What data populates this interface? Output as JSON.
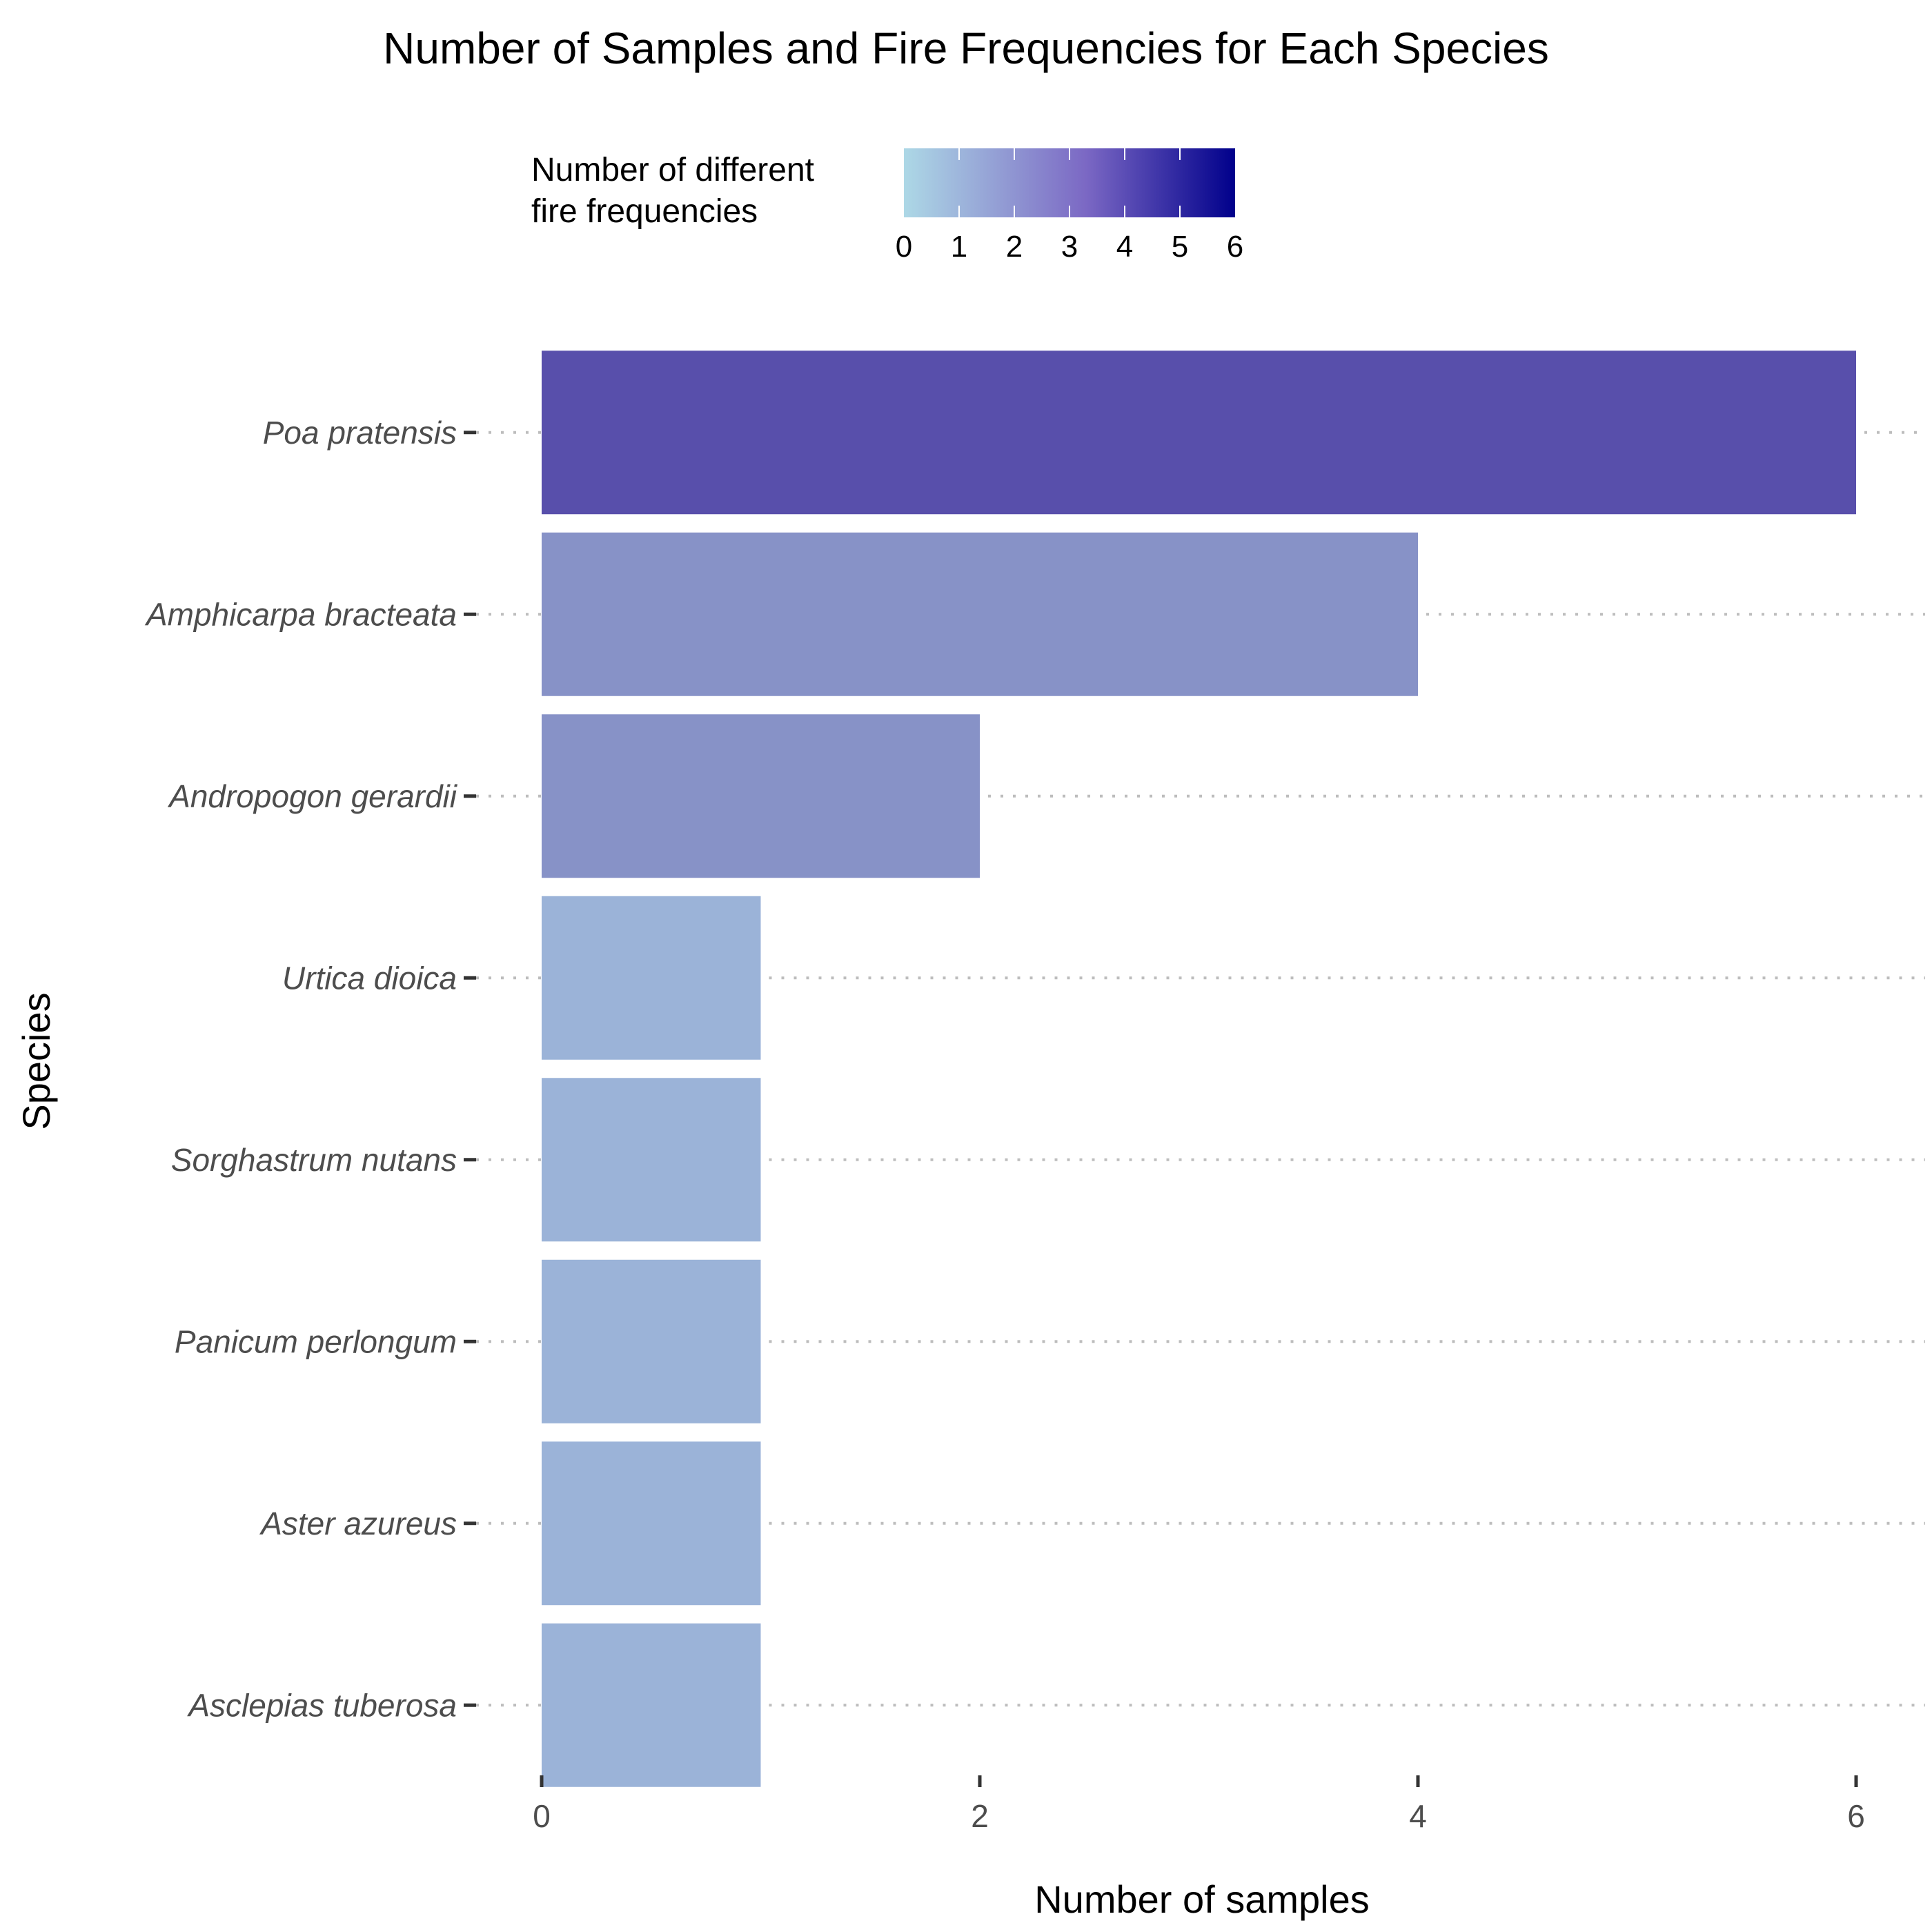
{
  "chart_data": {
    "type": "bar",
    "orientation": "horizontal",
    "title": "Number of Samples and Fire Frequencies for Each Species",
    "xlabel": "Number of samples",
    "ylabel": "Species",
    "xlim": [
      0,
      6
    ],
    "x_ticks": [
      "0",
      "2",
      "4",
      "6"
    ],
    "categories": [
      "Poa pratensis",
      "Amphicarpa bracteata",
      "Andropogon gerardii",
      "Urtica dioica",
      "Sorghastrum nutans",
      "Panicum perlongum",
      "Aster azureus",
      "Asclepias tuberosa"
    ],
    "values": [
      6,
      4,
      2,
      1,
      1,
      1,
      1,
      1
    ],
    "fire_frequencies": [
      4,
      2,
      2,
      1,
      1,
      1,
      1,
      1
    ],
    "bar_colors": [
      "#584fab",
      "#8792c7",
      "#8792c7",
      "#9bb3d8",
      "#9bb3d8",
      "#9bb3d8",
      "#9bb3d8",
      "#9bb3d8"
    ],
    "legend": {
      "title_lines": [
        "Number of different",
        "fire frequencies"
      ],
      "ticks": [
        "0",
        "1",
        "2",
        "3",
        "4",
        "5",
        "6"
      ],
      "range": [
        0,
        6
      ],
      "gradient": [
        "#add8e6",
        "#7b68c4",
        "#00008b"
      ],
      "placement": "top"
    },
    "grid": "dotted horizontal",
    "colors": {
      "grid": "#bdbdbd",
      "tick": "#333333"
    }
  }
}
